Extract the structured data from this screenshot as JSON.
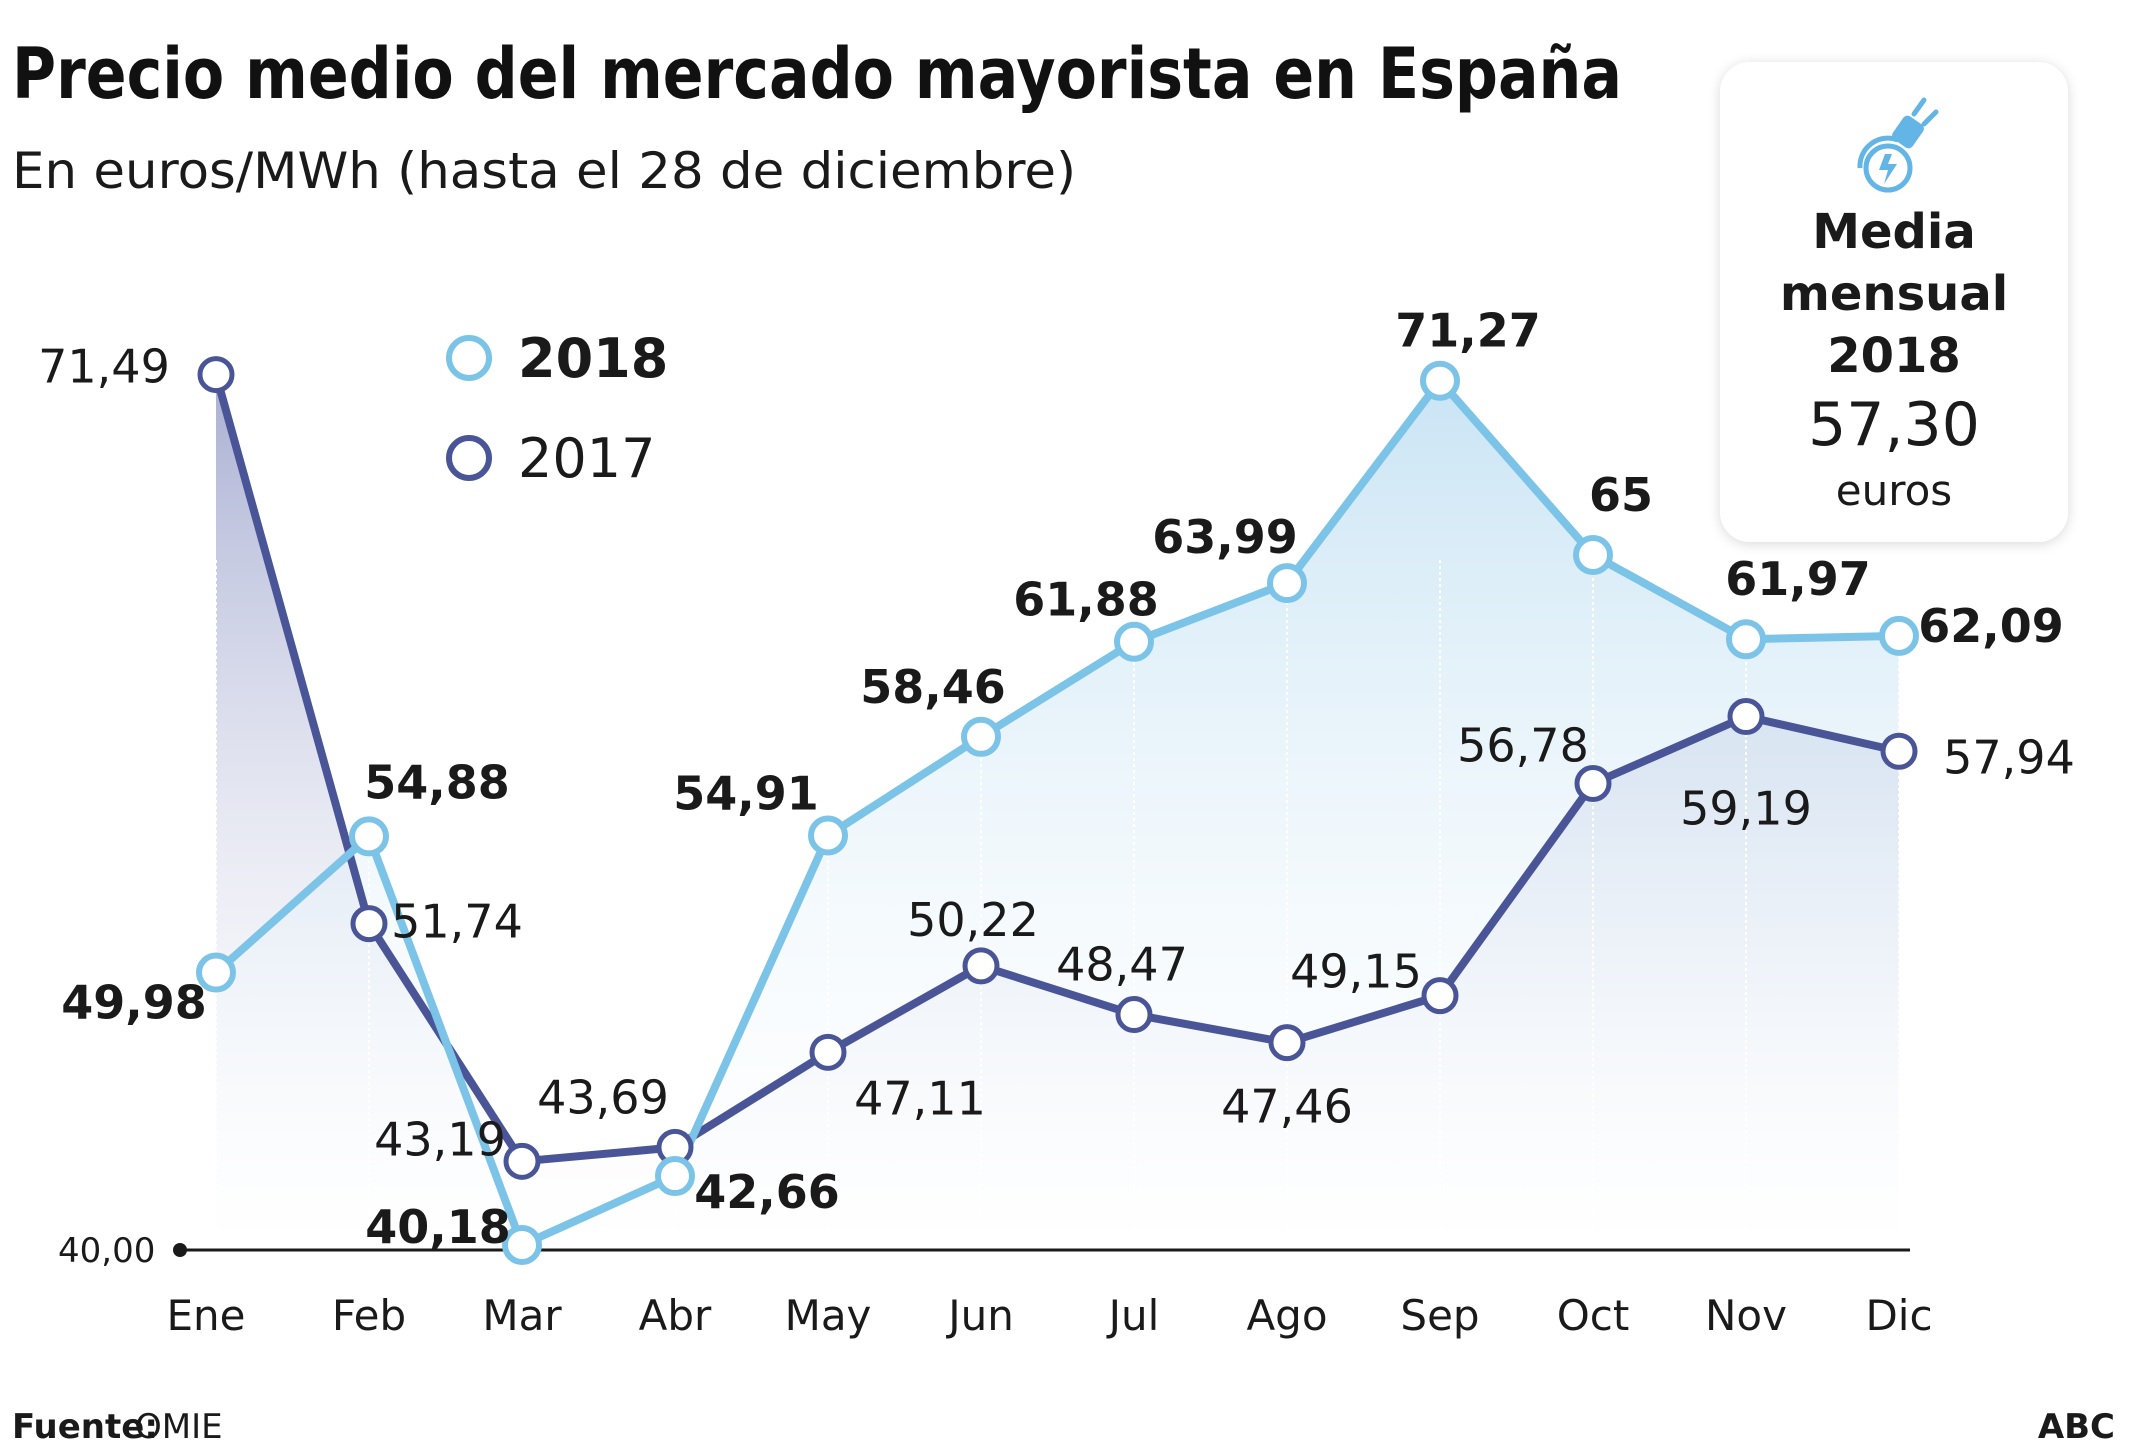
{
  "header": {
    "title": "Precio medio del mercado mayorista en España",
    "subtitle": "En euros/MWh (hasta el 28 de diciembre)"
  },
  "legend": {
    "items": [
      {
        "label": "2018",
        "color": "#7cc3e8"
      },
      {
        "label": "2017",
        "color": "#4a5597"
      }
    ]
  },
  "summary_box": {
    "icon": "plug-lightning-icon",
    "line1": "Media",
    "line2": "mensual",
    "line3": "2018",
    "value": "57,30",
    "unit": "euros"
  },
  "footer": {
    "source_label": "Fuente:",
    "source_value": "OMIE",
    "brand": "ABC"
  },
  "colors": {
    "series_2018": "#7cc3e8",
    "series_2017": "#4a5597",
    "fill_2018": "#cfe7f5",
    "fill_2017": "#aeb4d6"
  },
  "chart_data": {
    "type": "line",
    "categories": [
      "Ene",
      "Feb",
      "Mar",
      "Abr",
      "May",
      "Jun",
      "Jul",
      "Ago",
      "Sep",
      "Oct",
      "Nov",
      "Dic"
    ],
    "baseline_label": "40,00",
    "ylim": [
      40,
      72
    ],
    "series": [
      {
        "name": "2018",
        "values": [
          49.98,
          54.88,
          40.18,
          42.66,
          54.91,
          58.46,
          61.88,
          63.99,
          71.27,
          65,
          61.97,
          62.09
        ],
        "labels": [
          "49,98",
          "54,88",
          "40,18",
          "42,66",
          "54,91",
          "58,46",
          "61,88",
          "63,99",
          "71,27",
          "65",
          "61,97",
          "62,09"
        ]
      },
      {
        "name": "2017",
        "values": [
          71.49,
          51.74,
          43.19,
          43.69,
          47.11,
          50.22,
          48.47,
          47.46,
          49.15,
          56.78,
          59.19,
          57.94
        ],
        "labels": [
          "71,49",
          "51,74",
          "43,19",
          "43,69",
          "47,11",
          "50,22",
          "48,47",
          "47,46",
          "49,15",
          "56,78",
          "59,19",
          "57,94"
        ]
      }
    ]
  }
}
